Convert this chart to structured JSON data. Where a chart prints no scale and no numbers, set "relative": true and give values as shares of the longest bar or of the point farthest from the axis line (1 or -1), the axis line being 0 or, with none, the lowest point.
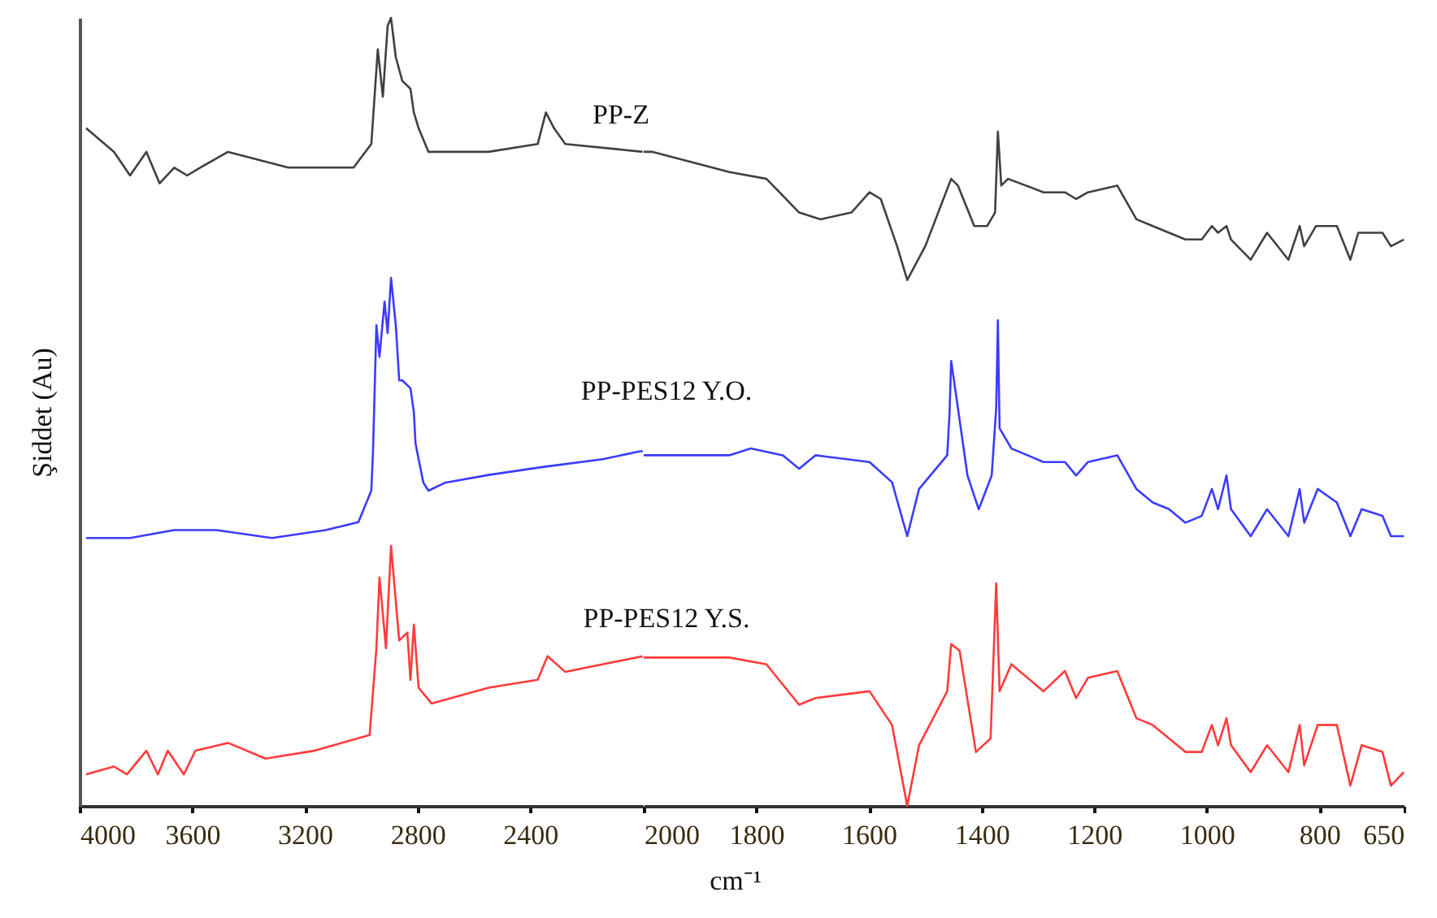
{
  "chart_data": [
    {
      "type": "line",
      "relative": true,
      "ylabel": "Şiddet (Au)",
      "grid": false,
      "xlim": [
        4000,
        2000
      ],
      "xticks": [
        4000,
        3600,
        3200,
        2800,
        2400
      ],
      "series": [
        {
          "name": "PP-Z",
          "color": "#404040",
          "x": [
            3977,
            3878,
            3821,
            3763,
            3716,
            3664,
            3618,
            3572,
            3473,
            3259,
            3027,
            2964,
            2941,
            2923,
            2906,
            2894,
            2877,
            2854,
            2825,
            2813,
            2796,
            2761,
            2547,
            2373,
            2344,
            2315,
            2275,
            2000
          ],
          "values": [
            0.86,
            0.83,
            0.8,
            0.83,
            0.79,
            0.81,
            0.8,
            0.81,
            0.83,
            0.81,
            0.81,
            0.84,
            0.96,
            0.9,
            0.99,
            1.0,
            0.95,
            0.92,
            0.91,
            0.88,
            0.86,
            0.83,
            0.83,
            0.84,
            0.88,
            0.86,
            0.84,
            0.83
          ]
        },
        {
          "name": "PP-PES12 Y.O.",
          "color": "#3b3bff",
          "x": [
            3977,
            3821,
            3664,
            3514,
            3317,
            3126,
            3010,
            2964,
            2958,
            2946,
            2935,
            2917,
            2906,
            2894,
            2877,
            2865,
            2854,
            2825,
            2813,
            2807,
            2796,
            2779,
            2761,
            2703,
            2547,
            2356,
            2142,
            2009,
            2000
          ],
          "values": [
            0.34,
            0.34,
            0.35,
            0.35,
            0.34,
            0.35,
            0.36,
            0.4,
            0.45,
            0.61,
            0.57,
            0.64,
            0.6,
            0.67,
            0.61,
            0.54,
            0.54,
            0.53,
            0.5,
            0.46,
            0.44,
            0.41,
            0.4,
            0.41,
            0.42,
            0.43,
            0.44,
            0.45,
            0.45
          ]
        },
        {
          "name": "PP-PES12 Y.S.",
          "color": "#ff3b3b",
          "x": [
            3977,
            3878,
            3832,
            3763,
            3722,
            3687,
            3630,
            3589,
            3473,
            3340,
            3166,
            2970,
            2946,
            2935,
            2912,
            2894,
            2865,
            2836,
            2825,
            2813,
            2796,
            2750,
            2547,
            2373,
            2338,
            2275,
            2000
          ],
          "values": [
            0.04,
            0.05,
            0.04,
            0.07,
            0.04,
            0.07,
            0.04,
            0.07,
            0.08,
            0.06,
            0.07,
            0.09,
            0.2,
            0.29,
            0.2,
            0.33,
            0.21,
            0.22,
            0.16,
            0.23,
            0.15,
            0.13,
            0.15,
            0.16,
            0.19,
            0.17,
            0.19
          ]
        }
      ]
    },
    {
      "type": "line",
      "relative": true,
      "xlabel": "cm⁻¹",
      "grid": false,
      "xlim": [
        2000,
        650
      ],
      "xticks": [
        2000,
        1800,
        1600,
        1400,
        1200,
        1000,
        800,
        650
      ],
      "series": [
        {
          "color": "#404040",
          "x": [
            2000,
            1984,
            1848,
            1782,
            1724,
            1686,
            1631,
            1599,
            1579,
            1550,
            1532,
            1500,
            1454,
            1442,
            1413,
            1390,
            1376,
            1371,
            1365,
            1353,
            1290,
            1252,
            1232,
            1211,
            1159,
            1125,
            1096,
            1038,
            1009,
            991,
            980,
            965,
            957,
            922,
            893,
            855,
            835,
            827,
            806,
            769,
            745,
            731,
            688,
            673,
            650
          ],
          "values": [
            0.97,
            0.97,
            0.94,
            0.93,
            0.88,
            0.87,
            0.88,
            0.91,
            0.9,
            0.83,
            0.78,
            0.83,
            0.93,
            0.92,
            0.86,
            0.86,
            0.88,
            1.0,
            0.92,
            0.93,
            0.91,
            0.91,
            0.9,
            0.91,
            0.92,
            0.87,
            0.86,
            0.84,
            0.84,
            0.86,
            0.85,
            0.86,
            0.84,
            0.81,
            0.85,
            0.81,
            0.86,
            0.83,
            0.86,
            0.86,
            0.81,
            0.85,
            0.85,
            0.83,
            0.84
          ]
        },
        {
          "color": "#3b3bff",
          "x": [
            2000,
            1848,
            1810,
            1753,
            1724,
            1695,
            1599,
            1559,
            1532,
            1511,
            1461,
            1457,
            1454,
            1442,
            1425,
            1405,
            1382,
            1374,
            1371,
            1368,
            1347,
            1290,
            1252,
            1232,
            1211,
            1159,
            1125,
            1096,
            1067,
            1038,
            1009,
            991,
            980,
            965,
            957,
            922,
            893,
            855,
            835,
            827,
            803,
            769,
            745,
            725,
            688,
            673,
            650
          ],
          "values": [
            0.52,
            0.52,
            0.53,
            0.52,
            0.5,
            0.52,
            0.51,
            0.48,
            0.4,
            0.47,
            0.52,
            0.58,
            0.66,
            0.59,
            0.49,
            0.44,
            0.49,
            0.59,
            0.72,
            0.56,
            0.53,
            0.51,
            0.51,
            0.49,
            0.51,
            0.52,
            0.47,
            0.45,
            0.44,
            0.42,
            0.43,
            0.47,
            0.44,
            0.49,
            0.44,
            0.4,
            0.44,
            0.4,
            0.47,
            0.42,
            0.47,
            0.45,
            0.4,
            0.44,
            0.43,
            0.4,
            0.4
          ]
        },
        {
          "color": "#ff3b3b",
          "x": [
            2000,
            1984,
            1848,
            1782,
            1724,
            1695,
            1599,
            1559,
            1532,
            1511,
            1461,
            1454,
            1439,
            1410,
            1384,
            1374,
            1368,
            1347,
            1290,
            1252,
            1232,
            1211,
            1159,
            1125,
            1096,
            1038,
            1009,
            991,
            980,
            965,
            957,
            922,
            893,
            855,
            835,
            827,
            803,
            769,
            745,
            725,
            688,
            673,
            650
          ],
          "values": [
            0.22,
            0.22,
            0.22,
            0.21,
            0.15,
            0.16,
            0.17,
            0.12,
            0.0,
            0.09,
            0.17,
            0.24,
            0.23,
            0.08,
            0.1,
            0.33,
            0.17,
            0.21,
            0.17,
            0.2,
            0.16,
            0.19,
            0.2,
            0.13,
            0.12,
            0.08,
            0.08,
            0.12,
            0.09,
            0.13,
            0.09,
            0.05,
            0.09,
            0.05,
            0.12,
            0.06,
            0.12,
            0.12,
            0.03,
            0.09,
            0.08,
            0.03,
            0.05
          ]
        }
      ]
    }
  ]
}
